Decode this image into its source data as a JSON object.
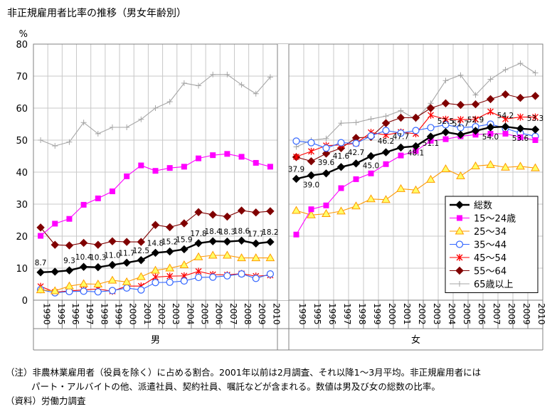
{
  "chart_data": {
    "type": "line",
    "title": "非正規雇用者比率の推移（男女年齢別）",
    "ylabel": "%",
    "ylim": [
      0,
      80
    ],
    "yticks": [
      0,
      10,
      20,
      30,
      40,
      50,
      60,
      70,
      80
    ],
    "grid": true,
    "legend_position": "right",
    "years": [
      "1990",
      "1995",
      "1996",
      "1997",
      "1998",
      "1999",
      "2000",
      "2001",
      "2002",
      "2003",
      "2004",
      "2005",
      "2006",
      "2007",
      "2008",
      "2009",
      "2010"
    ],
    "groups": [
      {
        "name": "男",
        "series": [
          {
            "name": "総数",
            "values": [
              8.7,
              8.9,
              9.3,
              10.4,
              10.3,
              11.0,
              11.7,
              12.5,
              14.8,
              15.2,
              15.9,
              17.8,
              18.4,
              18.3,
              18.6,
              17.7,
              18.2
            ]
          },
          {
            "name": "15～24歳",
            "values": [
              20.1,
              23.9,
              25.4,
              29.8,
              31.8,
              34.0,
              38.7,
              42.1,
              40.4,
              41.3,
              41.7,
              44.3,
              45.3,
              45.7,
              44.8,
              42.9,
              41.7
            ]
          },
          {
            "name": "25～34",
            "values": [
              3.2,
              2.9,
              4.4,
              5.1,
              5.0,
              6.2,
              5.7,
              7.3,
              9.3,
              10.0,
              11.0,
              13.5,
              14.0,
              14.0,
              13.2,
              13.2,
              13.2
            ]
          },
          {
            "name": "35～44",
            "values": [
              3.3,
              2.3,
              2.7,
              2.8,
              2.6,
              3.0,
              3.8,
              3.2,
              5.5,
              5.6,
              6.0,
              7.1,
              7.2,
              7.6,
              8.2,
              6.8,
              8.2
            ]
          },
          {
            "name": "45～54",
            "values": [
              4.3,
              2.5,
              2.9,
              3.2,
              3.5,
              2.8,
              4.4,
              4.4,
              7.2,
              7.5,
              7.6,
              9.0,
              8.0,
              7.9,
              8.3,
              7.5,
              7.8
            ]
          },
          {
            "name": "55～64",
            "values": [
              22.7,
              17.3,
              17.1,
              17.9,
              17.3,
              18.4,
              18.2,
              18.2,
              23.5,
              22.8,
              24.0,
              27.5,
              26.7,
              26.1,
              28.0,
              27.4,
              27.8
            ]
          },
          {
            "name": "65歳以上",
            "values": [
              50.0,
              48.2,
              49.4,
              55.5,
              52.0,
              54.0,
              54.0,
              56.5,
              60.0,
              62.0,
              67.8,
              67.0,
              70.5,
              70.5,
              67.3,
              64.5,
              69.7
            ]
          }
        ],
        "labels": [
          "8.7",
          "",
          "9.3",
          "10.4",
          "10.3",
          "11.0",
          "11.7",
          "12.5",
          "14.8",
          "15.2",
          "15.9",
          "17.8",
          "18.4",
          "18.3",
          "18.6",
          "17.7",
          "18.2"
        ]
      },
      {
        "name": "女",
        "series": [
          {
            "name": "総数",
            "values": [
              37.9,
              39.0,
              39.6,
              41.6,
              42.7,
              45.0,
              46.2,
              47.7,
              48.1,
              51.1,
              52.5,
              51.7,
              52.9,
              54.0,
              54.2,
              53.6,
              53.3
            ]
          },
          {
            "name": "15～24歳",
            "values": [
              20.5,
              28.4,
              29.6,
              35.0,
              37.8,
              39.6,
              42.5,
              45.2,
              46.6,
              49.8,
              50.3,
              51.2,
              51.7,
              52.0,
              52.0,
              50.9,
              50.0
            ]
          },
          {
            "name": "25～34",
            "values": [
              28.0,
              26.6,
              27.0,
              27.8,
              29.4,
              31.6,
              31.4,
              34.8,
              34.4,
              37.7,
              41.0,
              38.8,
              41.9,
              42.3,
              41.5,
              41.8,
              41.3
            ]
          },
          {
            "name": "35～44",
            "values": [
              49.7,
              49.2,
              47.5,
              49.2,
              49.0,
              51.3,
              53.0,
              52.2,
              53.0,
              53.9,
              54.8,
              53.9,
              54.2,
              55.0,
              53.7,
              52.2,
              51.2
            ]
          },
          {
            "name": "45～54",
            "values": [
              44.8,
              46.5,
              48.3,
              48.5,
              49.0,
              52.4,
              51.6,
              52.5,
              52.0,
              57.8,
              56.5,
              56.4,
              56.5,
              58.9,
              56.6,
              57.2,
              57.2
            ]
          },
          {
            "name": "55～64",
            "values": [
              44.7,
              43.4,
              45.8,
              47.5,
              50.7,
              51.0,
              55.3,
              57.0,
              57.0,
              60.0,
              61.5,
              61.0,
              61.2,
              62.8,
              64.3,
              63.2,
              63.8
            ]
          },
          {
            "name": "65歳以上",
            "values": [
              47.9,
              50.0,
              50.5,
              55.3,
              55.5,
              56.6,
              57.5,
              59.2,
              56.5,
              61.5,
              68.6,
              70.3,
              64.1,
              69.0,
              72.0,
              74.0,
              71.0
            ]
          }
        ],
        "labels": [
          "37.9",
          "39.0",
          "39.6",
          "41.6",
          "42.7",
          "45.0",
          "46.2",
          "47.7",
          "48.1",
          "51.1",
          "52.5",
          "51.7",
          "52.9",
          "54.0",
          "54.2",
          "53.6",
          "53.3"
        ]
      }
    ],
    "legend": [
      "総数",
      "15～24歳",
      "25～34",
      "35～44",
      "45～54",
      "55～64",
      "65歳以上"
    ],
    "colors": [
      "#000000",
      "#ff00ff",
      "#ff9900",
      "#3366ff",
      "#ff0000",
      "#800000",
      "#a6a6a6"
    ],
    "markers": [
      "diamond",
      "square",
      "triangle",
      "circle",
      "star",
      "diamond",
      "plus"
    ]
  },
  "notes": {
    "line1": "（注）非農林業雇用者（役員を除く）に占める割合。2001年以前は2月調査、それ以降1～3月平均。非正規雇用者には",
    "line2": "パート・アルバイトの他、派遣社員、契約社員、嘱託などが含まれる。数値は男及び女の総数の比率。",
    "line3": "（資料）労働力調査"
  }
}
